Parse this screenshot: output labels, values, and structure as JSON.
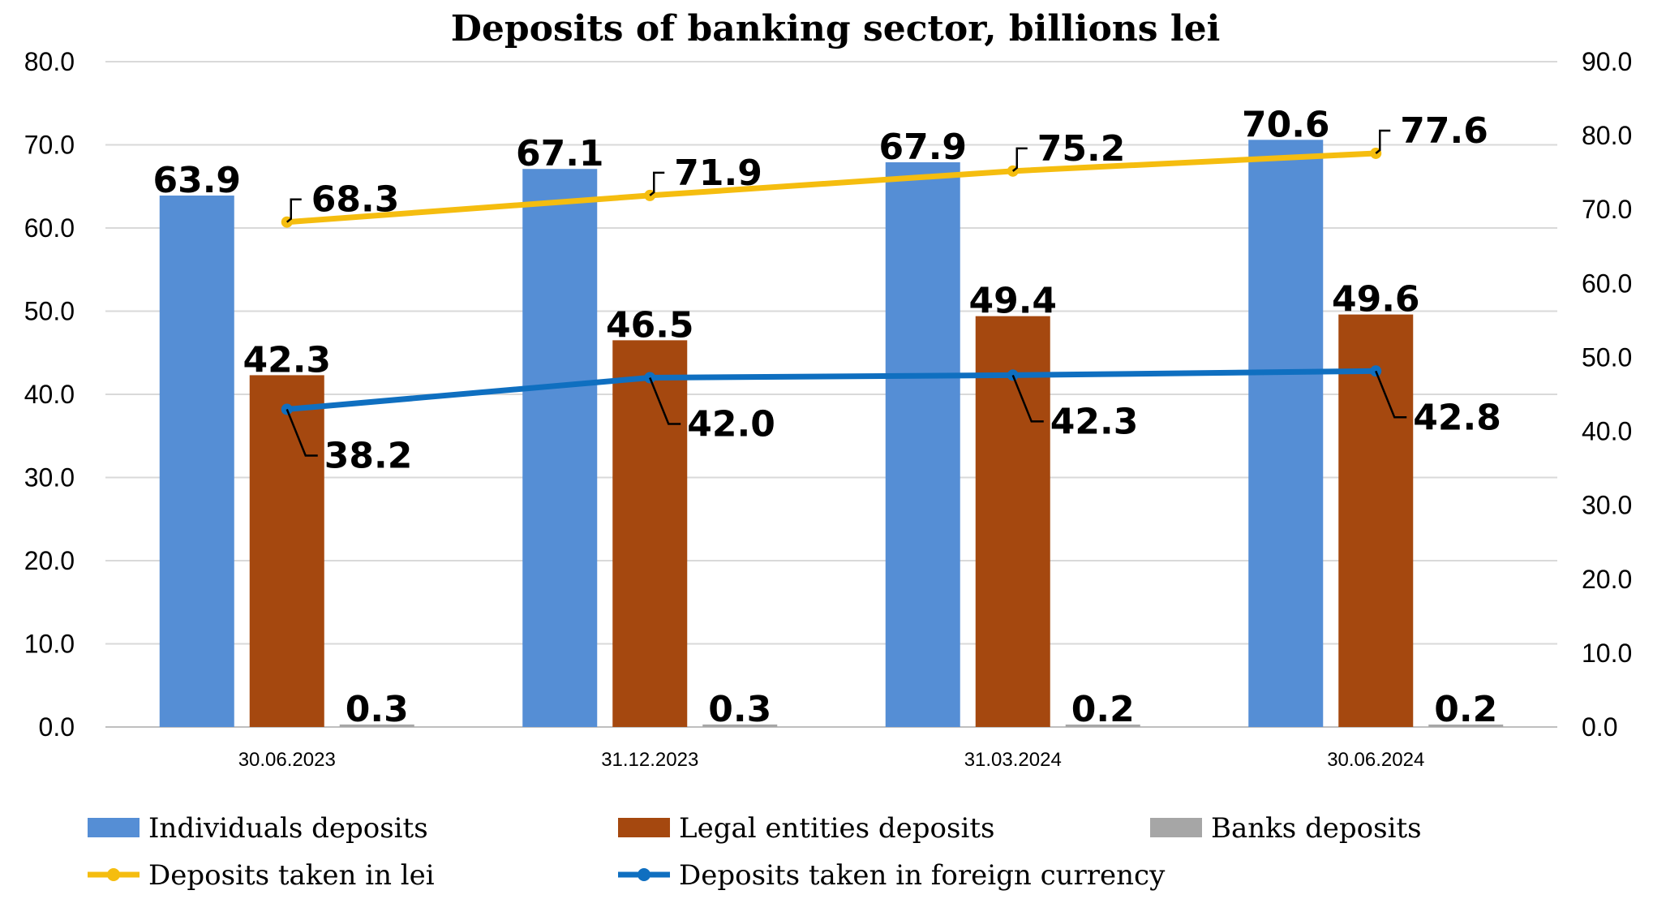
{
  "chart_data": {
    "type": "bar",
    "title": "Deposits of banking sector, billions lei",
    "categories": [
      "30.06.2023",
      "31.12.2023",
      "31.03.2024",
      "30.06.2024"
    ],
    "y_left": {
      "range": [
        0,
        80
      ],
      "ticks": [
        "0.0",
        "10.0",
        "20.0",
        "30.0",
        "40.0",
        "50.0",
        "60.0",
        "70.0",
        "80.0"
      ]
    },
    "y_right": {
      "range": [
        0,
        90
      ],
      "ticks": [
        "0.0",
        "10.0",
        "20.0",
        "30.0",
        "40.0",
        "50.0",
        "60.0",
        "70.0",
        "80.0",
        "90.0"
      ]
    },
    "grid": true,
    "legend_position": "bottom",
    "bar_series": [
      {
        "name": "Individuals deposits",
        "color": "#558ED5",
        "axis": "left",
        "values": [
          63.9,
          67.1,
          67.9,
          70.6
        ],
        "labels": [
          "63.9",
          "67.1",
          "67.9",
          "70.6"
        ]
      },
      {
        "name": "Legal entities deposits",
        "color": "#A5480F",
        "axis": "left",
        "values": [
          42.3,
          46.5,
          49.4,
          49.6
        ],
        "labels": [
          "42.3",
          "46.5",
          "49.4",
          "49.6"
        ]
      },
      {
        "name": "Banks deposits",
        "color": "#A6A6A6",
        "axis": "left",
        "values": [
          0.3,
          0.3,
          0.2,
          0.2
        ],
        "labels": [
          "0.3",
          "0.3",
          "0.2",
          "0.2"
        ]
      }
    ],
    "line_series": [
      {
        "name": "Deposits taken in lei",
        "color": "#F5BD0F",
        "axis": "right",
        "values": [
          68.3,
          71.9,
          75.2,
          77.6
        ],
        "labels": [
          "68.3",
          "71.9",
          "75.2",
          "77.6"
        ],
        "label_side": "above"
      },
      {
        "name": "Deposits taken in foreign currency",
        "color": "#0F6FC0",
        "axis": "left",
        "values": [
          38.2,
          42.0,
          42.3,
          42.8
        ],
        "labels": [
          "38.2",
          "42.0",
          "42.3",
          "42.8"
        ],
        "label_side": "below"
      }
    ]
  }
}
